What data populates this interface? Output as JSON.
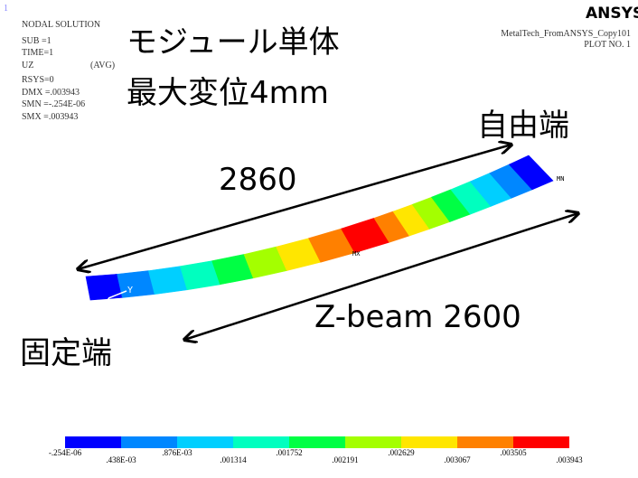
{
  "header": {
    "window_number": "1",
    "lines": [
      "NODAL SOLUTION",
      "SUB =1",
      "TIME=1",
      "UZ",
      "(AVG)",
      "RSYS=0",
      "DMX =.003943",
      "SMN =-.254E-06",
      "SMX =.003943"
    ],
    "logo": "ANSYS",
    "model": "MetalTech_FromANSYS_Copy101",
    "plot": "PLOT NO.   1"
  },
  "overlay": {
    "title": "モジュール単体",
    "subtitle": "最大変位4mm",
    "free_end": "自由端",
    "fixed_end": "固定端",
    "length": "2860",
    "beam": "Z-beam 2600",
    "min_marker": "MN",
    "max_marker": "MX",
    "axis": "Y"
  },
  "legend": {
    "colors": [
      "#0000ff",
      "#0087ff",
      "#00cfff",
      "#00ffbf",
      "#00ff44",
      "#a4ff00",
      "#ffe600",
      "#ff8000",
      "#ff0000"
    ],
    "labels": [
      "-.254E-06",
      ".438E-03",
      ".876E-03",
      ".001314",
      ".001752",
      ".002191",
      ".002629",
      ".003067",
      ".003505",
      ".003943"
    ]
  }
}
